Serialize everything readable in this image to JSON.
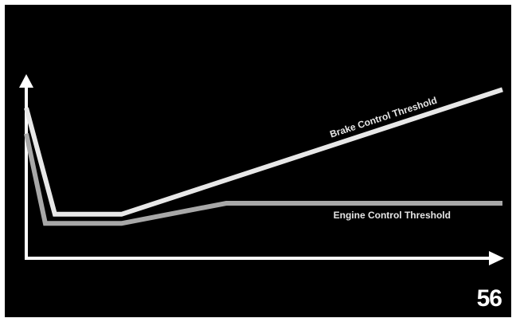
{
  "page_number": "56",
  "colors": {
    "background": "#000000",
    "axis": "#ffffff",
    "brake_line": "#e8e8e8",
    "engine_line": "#a8a8a8",
    "label": "#e6e6e6"
  },
  "chart_data": {
    "type": "line",
    "title": "",
    "xlabel": "",
    "ylabel": "",
    "xlim": [
      0,
      100
    ],
    "ylim": [
      0,
      100
    ],
    "grid": false,
    "series": [
      {
        "name": "Brake Control Threshold",
        "x": [
          0,
          6,
          20,
          100
        ],
        "y": [
          82,
          24,
          24,
          92
        ]
      },
      {
        "name": "Engine Control Threshold",
        "x": [
          0,
          4,
          20,
          42,
          100
        ],
        "y": [
          68,
          19,
          19,
          30,
          30
        ]
      }
    ]
  }
}
